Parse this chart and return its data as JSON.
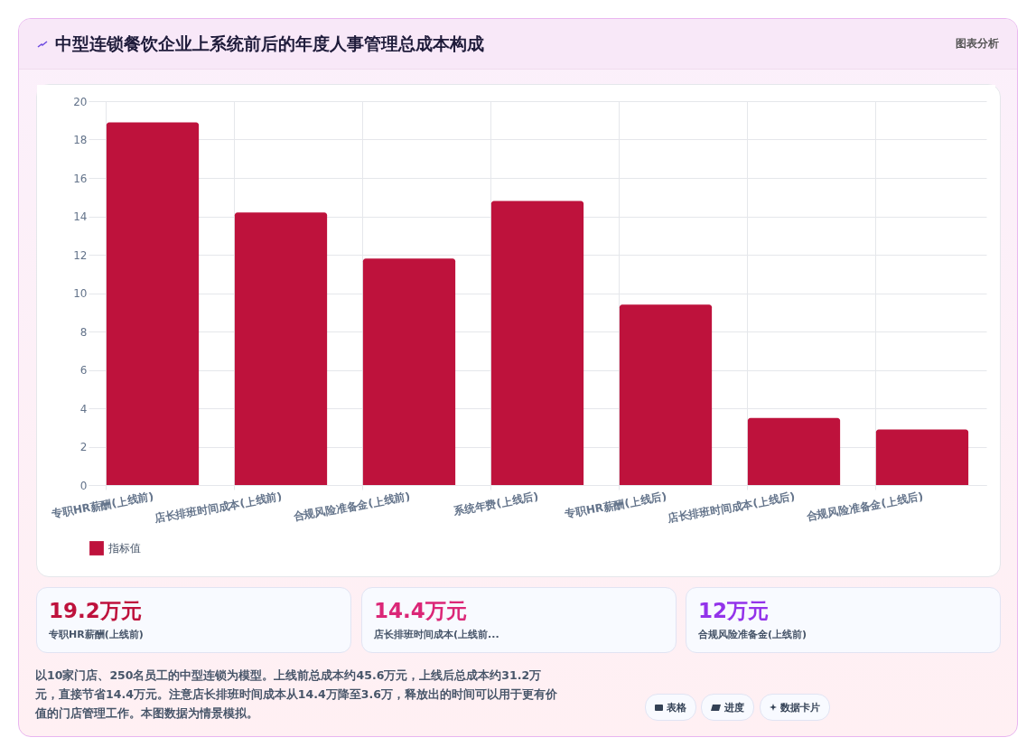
{
  "chart_data": {
    "type": "bar",
    "title": "中型连锁餐饮企业上系统前后的年度人事管理总成本构成",
    "categories": [
      "专职HR薪酬(上线前)",
      "店长排班时间成本(上线前)",
      "合规风险准备金(上线前)",
      "系统年费(上线后)",
      "专职HR薪酬(上线后)",
      "店长排班时间成本(上线后)",
      "合规风险准备金(上线后)"
    ],
    "series": [
      {
        "name": "指标值",
        "color": "#be123c",
        "values": [
          18.9,
          14.2,
          11.8,
          14.8,
          9.4,
          3.5,
          2.9
        ]
      }
    ],
    "ylim": [
      0,
      20
    ],
    "yticks": [
      0,
      2,
      4,
      6,
      8,
      10,
      12,
      14,
      16,
      18,
      20
    ],
    "grid": true,
    "legend": "bottom",
    "annotations": [
      "图表分析",
      "19.2万元",
      "专职HR薪酬(上线前)",
      "14.4万元",
      "店长排班时间成本(上线前...",
      "12万元",
      "合规风险准备金(上线前)",
      "以10家门店、250名员工的中型连锁为模型。上线前总成本约45.6万元，上线后总成本约31.2万元，直接节省14.4万元。注意店长排班时间成本从14.4万降至3.6万，释放出的时间可以用于更有价值的门店管理工作。本图数据为情景模拟。",
      "表格",
      "进度",
      "数据卡片"
    ]
  }
}
